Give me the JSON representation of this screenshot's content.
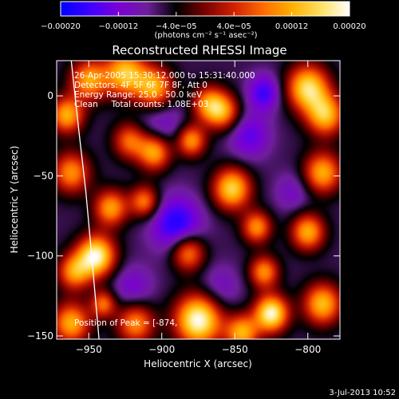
{
  "chart_data": {
    "type": "heatmap",
    "title": "Reconstructed RHESSI Image",
    "xlabel": "Heliocentric X (arcsec)",
    "ylabel": "Heliocentric Y (arcsec)",
    "xlim": [
      -972,
      -778
    ],
    "ylim": [
      -152,
      22
    ],
    "x_ticks": [
      -950,
      -900,
      -850,
      -800
    ],
    "x_tick_labels": [
      "−950",
      "−900",
      "−850",
      "−800"
    ],
    "y_ticks": [
      0,
      -50,
      -100,
      -150
    ],
    "y_tick_labels": [
      "0",
      "−50",
      "−100",
      "−150"
    ],
    "colorbar": {
      "range": [
        -0.0002,
        0.0002
      ],
      "ticks": [
        -0.0002,
        -0.00012,
        -4e-05,
        4e-05,
        0.00012,
        0.0002
      ],
      "tick_labels": [
        "−0.00020",
        "−0.00012",
        "−4.0e−05",
        "4.0e−05",
        "0.00012",
        "0.00020"
      ],
      "unit_label": "(photons cm⁻² s⁻¹ asec⁻²)",
      "colors": [
        "#0000ff",
        "#3d00ff",
        "#7a00d6",
        "#6e1f9a",
        "#000000",
        "#7a0000",
        "#d02000",
        "#ff6a00",
        "#ffb000",
        "#ffe060",
        "#ffffff"
      ]
    },
    "annotations": {
      "line1": "26-Apr-2005 15:30:12.000 to 15:31:40.000",
      "line2": "Detectors: 4F 5F 6F 7F 8F, Att 0",
      "line3": "Energy Range: 25.0 - 50.0 keV",
      "line4": "Clean     Total counts: 1.08E+03",
      "peak": "Position of Peak = [-874,"
    },
    "limb_curve": [
      [
        -962,
        22
      ],
      [
        -957,
        -20
      ],
      [
        -952,
        -60
      ],
      [
        -948,
        -100
      ],
      [
        -943,
        -152
      ]
    ],
    "sources": [
      {
        "x": -950,
        "y": 10,
        "v": 0.00011,
        "s": 9
      },
      {
        "x": -925,
        "y": 14,
        "v": 0.00014,
        "s": 10
      },
      {
        "x": -905,
        "y": 5,
        "v": 0.00012,
        "s": 9
      },
      {
        "x": -868,
        "y": -5,
        "v": 9e-05,
        "s": 8
      },
      {
        "x": -800,
        "y": 5,
        "v": 0.00016,
        "s": 10
      },
      {
        "x": -788,
        "y": -12,
        "v": 0.00013,
        "s": 9
      },
      {
        "x": -965,
        "y": -12,
        "v": 0.00012,
        "s": 8
      },
      {
        "x": -922,
        "y": -28,
        "v": 8e-05,
        "s": 8
      },
      {
        "x": -905,
        "y": -35,
        "v": 0.00013,
        "s": 8
      },
      {
        "x": -880,
        "y": -28,
        "v": 0.00011,
        "s": 7
      },
      {
        "x": -858,
        "y": -10,
        "v": 9e-05,
        "s": 8
      },
      {
        "x": -790,
        "y": -48,
        "v": 0.00012,
        "s": 9
      },
      {
        "x": -962,
        "y": -48,
        "v": 0.0001,
        "s": 9
      },
      {
        "x": -935,
        "y": -70,
        "v": 0.00011,
        "s": 8
      },
      {
        "x": -912,
        "y": -66,
        "v": 9e-05,
        "s": 7
      },
      {
        "x": -852,
        "y": -58,
        "v": 0.00015,
        "s": 9
      },
      {
        "x": -835,
        "y": -82,
        "v": 0.0001,
        "s": 7
      },
      {
        "x": -800,
        "y": -85,
        "v": 0.00012,
        "s": 8
      },
      {
        "x": -945,
        "y": -100,
        "v": 0.00019,
        "s": 9
      },
      {
        "x": -960,
        "y": -110,
        "v": 0.0001,
        "s": 8
      },
      {
        "x": -882,
        "y": -98,
        "v": 0.0001,
        "s": 8
      },
      {
        "x": -830,
        "y": -110,
        "v": 0.0001,
        "s": 7
      },
      {
        "x": -962,
        "y": -142,
        "v": 0.00012,
        "s": 9
      },
      {
        "x": -918,
        "y": -142,
        "v": 0.0001,
        "s": 9
      },
      {
        "x": -875,
        "y": -140,
        "v": 0.0002,
        "s": 11
      },
      {
        "x": -845,
        "y": -148,
        "v": 0.00012,
        "s": 8
      },
      {
        "x": -825,
        "y": -136,
        "v": 0.00019,
        "s": 8
      },
      {
        "x": -790,
        "y": -130,
        "v": 0.00013,
        "s": 9
      },
      {
        "x": -900,
        "y": -20,
        "v": -6e-05,
        "s": 12
      },
      {
        "x": -890,
        "y": -80,
        "v": -0.00012,
        "s": 12
      },
      {
        "x": -840,
        "y": -25,
        "v": -8e-05,
        "s": 10
      },
      {
        "x": -830,
        "y": 2,
        "v": -0.0001,
        "s": 8
      },
      {
        "x": -920,
        "y": -120,
        "v": -6e-05,
        "s": 10
      },
      {
        "x": -860,
        "y": -120,
        "v": -5e-05,
        "s": 10
      },
      {
        "x": -810,
        "y": -60,
        "v": -5e-05,
        "s": 9
      },
      {
        "x": -940,
        "y": -130,
        "v": 8e-05,
        "s": 6
      }
    ]
  },
  "footer": {
    "date": "3-Jul-2013 10:52"
  }
}
